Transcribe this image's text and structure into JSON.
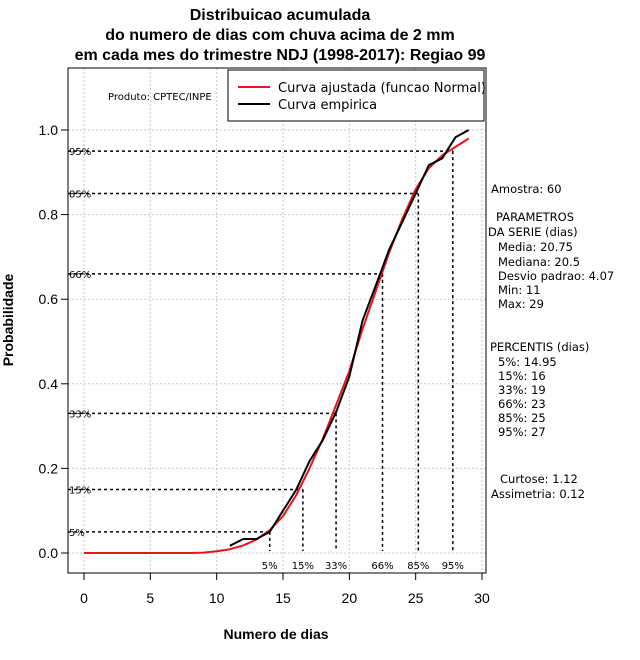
{
  "chart_data": {
    "type": "line",
    "title": [
      "Distribuicao acumulada",
      "do numero de dias com chuva acima de 2 mm",
      "em cada mes do trimestre NDJ (1998-2017): Regiao 99"
    ],
    "xlabel": "Numero de dias",
    "ylabel": "Probabilidade",
    "xlim": [
      0,
      30
    ],
    "ylim": [
      0,
      1.1
    ],
    "x_ticks": [
      "0",
      "5",
      "10",
      "15",
      "20",
      "25",
      "30"
    ],
    "y_ticks": [
      "0.0",
      "0.2",
      "0.4",
      "0.6",
      "0.8",
      "1.0"
    ],
    "grid": true,
    "legend_position": "top-right",
    "producer": "Produto: CPTEC/INPE",
    "series": [
      {
        "name": "Curva ajustada (funcao Normal)",
        "color": "#e8141c",
        "x": [
          0,
          2,
          4,
          6,
          8,
          9,
          10,
          11,
          12,
          13,
          14,
          15,
          16,
          17,
          18,
          19,
          20,
          21,
          22,
          23,
          24,
          25,
          26,
          27,
          28,
          29
        ],
        "y": [
          0.0,
          0.0,
          0.0,
          0.0,
          0.0,
          0.001,
          0.004,
          0.009,
          0.018,
          0.032,
          0.054,
          0.087,
          0.137,
          0.2,
          0.27,
          0.35,
          0.43,
          0.53,
          0.62,
          0.71,
          0.79,
          0.86,
          0.91,
          0.94,
          0.96,
          0.98
        ]
      },
      {
        "name": "Curva empirica",
        "color": "#000000",
        "x": [
          11,
          12,
          13,
          14,
          15,
          16,
          17,
          18,
          19,
          20,
          21,
          22,
          23,
          24,
          25,
          26,
          27,
          28,
          29
        ],
        "y": [
          0.017,
          0.033,
          0.033,
          0.05,
          0.1,
          0.15,
          0.217,
          0.267,
          0.333,
          0.417,
          0.55,
          0.633,
          0.717,
          0.783,
          0.85,
          0.917,
          0.933,
          0.983,
          1.0
        ]
      }
    ],
    "percentile_lines": [
      {
        "label": "5%",
        "y": 0.05,
        "x": 14.0
      },
      {
        "label": "15%",
        "y": 0.15,
        "x": 16.5
      },
      {
        "label": "33%",
        "y": 0.33,
        "x": 19.0
      },
      {
        "label": "66%",
        "y": 0.66,
        "x": 22.5
      },
      {
        "label": "85%",
        "y": 0.85,
        "x": 25.2
      },
      {
        "label": "95%",
        "y": 0.95,
        "x": 27.8
      }
    ]
  },
  "stats_panel": {
    "sample": "Amostra: 60",
    "params_header_1": "PARAMETROS",
    "params_header_2": "DA SERIE (dias)",
    "media": "Media: 20.75",
    "mediana": "Mediana: 20.5",
    "desvio": "Desvio padrao: 4.07",
    "min": "Min: 11",
    "max": "Max: 29",
    "percentis_header": "PERCENTIS (dias)",
    "p5": "5%: 14.95",
    "p15": "15%: 16",
    "p33": "33%: 19",
    "p66": "66%: 23",
    "p85": "85%: 25",
    "p95": "95%: 27",
    "curtose": "Curtose: 1.12",
    "assimetria": "Assimetria: 0.12"
  }
}
